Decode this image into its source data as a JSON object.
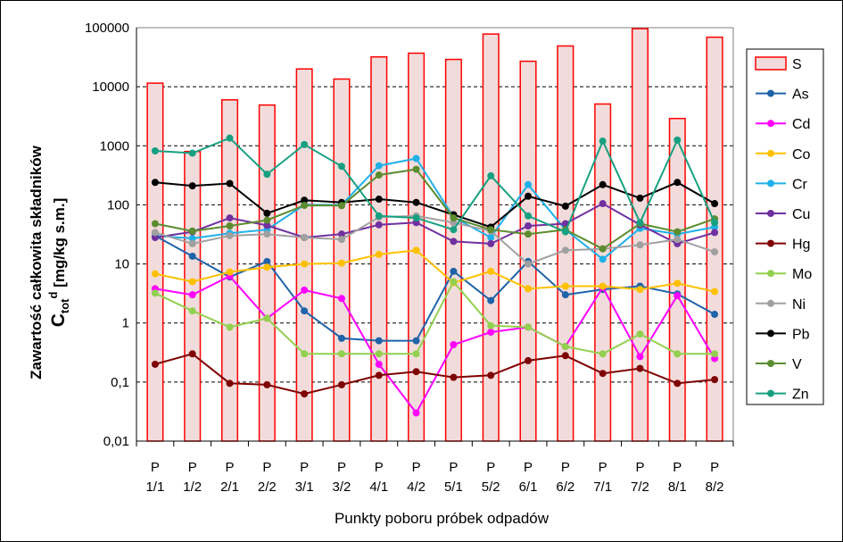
{
  "chart_data": {
    "type": "bar+line",
    "yscale": "log",
    "ylim": [
      0.01,
      100000
    ],
    "yticks": [
      "0,01",
      "0,1",
      "1",
      "10",
      "100",
      "1000",
      "10000",
      "100000"
    ],
    "ylabel_line1": "Zawartość całkowita składników",
    "ylabel_line2_main": "C",
    "ylabel_line2_sub": "tot",
    "ylabel_line2_sup": "d",
    "ylabel_line2_rest": " [mg/kg s.m.]",
    "xlabel": "Punkty poboru próbek odpadów",
    "categories": [
      {
        "top": "P",
        "bottom": "1/1"
      },
      {
        "top": "P",
        "bottom": "1/2"
      },
      {
        "top": "P",
        "bottom": "2/1"
      },
      {
        "top": "P",
        "bottom": "2/2"
      },
      {
        "top": "P",
        "bottom": "3/1"
      },
      {
        "top": "P",
        "bottom": "3/2"
      },
      {
        "top": "P",
        "bottom": "4/1"
      },
      {
        "top": "P",
        "bottom": "4/2"
      },
      {
        "top": "P",
        "bottom": "5/1"
      },
      {
        "top": "P",
        "bottom": "5/2"
      },
      {
        "top": "P",
        "bottom": "6/1"
      },
      {
        "top": "P",
        "bottom": "6/2"
      },
      {
        "top": "P",
        "bottom": "7/1"
      },
      {
        "top": "P",
        "bottom": "7/2"
      },
      {
        "top": "P",
        "bottom": "8/1"
      },
      {
        "top": "P",
        "bottom": "8/2"
      }
    ],
    "bar_series": {
      "name": "S",
      "fill": "#f2dcdb",
      "stroke": "#ff0000",
      "values": [
        11500,
        800,
        6000,
        4900,
        20000,
        13500,
        32000,
        37000,
        29000,
        78000,
        27000,
        49000,
        5100,
        96000,
        2900,
        69000
      ]
    },
    "series": [
      {
        "name": "As",
        "color": "#1f63a8",
        "values": [
          30,
          13.5,
          6,
          11,
          1.6,
          0.55,
          0.5,
          0.5,
          7.5,
          2.4,
          11,
          3,
          3.7,
          4.2,
          3.1,
          1.4
        ]
      },
      {
        "name": "Cd",
        "color": "#ff00ff",
        "values": [
          3.8,
          3,
          6.2,
          1.2,
          3.6,
          2.6,
          0.2,
          0.03,
          0.43,
          0.7,
          0.85,
          0.4,
          4,
          0.27,
          2.9,
          0.25
        ]
      },
      {
        "name": "Co",
        "color": "#ffc000",
        "values": [
          6.8,
          5,
          7.3,
          8.8,
          10,
          10.3,
          14.5,
          17,
          4.8,
          7.5,
          3.8,
          4.2,
          4.2,
          3.7,
          4.7,
          3.4
        ]
      },
      {
        "name": "Cr",
        "color": "#1fb0e8",
        "values": [
          30,
          27,
          33,
          38,
          100,
          100,
          460,
          610,
          62,
          28,
          220,
          38,
          12,
          40,
          32,
          42
        ]
      },
      {
        "name": "Cu",
        "color": "#7030a0",
        "values": [
          28,
          35,
          60,
          45,
          28,
          32,
          46,
          50,
          24,
          22,
          44,
          48,
          105,
          46,
          22,
          34
        ]
      },
      {
        "name": "Hg",
        "color": "#7f0000",
        "values": [
          0.2,
          0.3,
          0.095,
          0.09,
          0.063,
          0.09,
          0.13,
          0.15,
          0.12,
          0.13,
          0.23,
          0.28,
          0.14,
          0.17,
          0.095,
          0.11
        ]
      },
      {
        "name": "Mo",
        "color": "#92d050",
        "values": [
          3.2,
          1.6,
          0.85,
          1.2,
          0.3,
          0.3,
          0.3,
          0.3,
          5,
          0.9,
          0.85,
          0.4,
          0.3,
          0.65,
          0.3,
          0.3
        ]
      },
      {
        "name": "Ni",
        "color": "#a0a0a0",
        "values": [
          34,
          22,
          30,
          32,
          28,
          26,
          62,
          65,
          50,
          36,
          10,
          17,
          18,
          21,
          26,
          16
        ]
      },
      {
        "name": "Pb",
        "color": "#000000",
        "values": [
          240,
          210,
          230,
          72,
          120,
          110,
          125,
          110,
          68,
          42,
          140,
          95,
          220,
          130,
          240,
          105
        ]
      },
      {
        "name": "V",
        "color": "#5b8c2f",
        "values": [
          48,
          36,
          44,
          55,
          98,
          97,
          320,
          400,
          60,
          38,
          32,
          38,
          18,
          48,
          35,
          58
        ]
      },
      {
        "name": "Zn",
        "color": "#17a080",
        "values": [
          820,
          750,
          1350,
          330,
          1050,
          450,
          65,
          60,
          38,
          310,
          65,
          35,
          1200,
          50,
          1250,
          50
        ]
      }
    ],
    "grid": "horizontal dashed",
    "legend_position": "right"
  }
}
